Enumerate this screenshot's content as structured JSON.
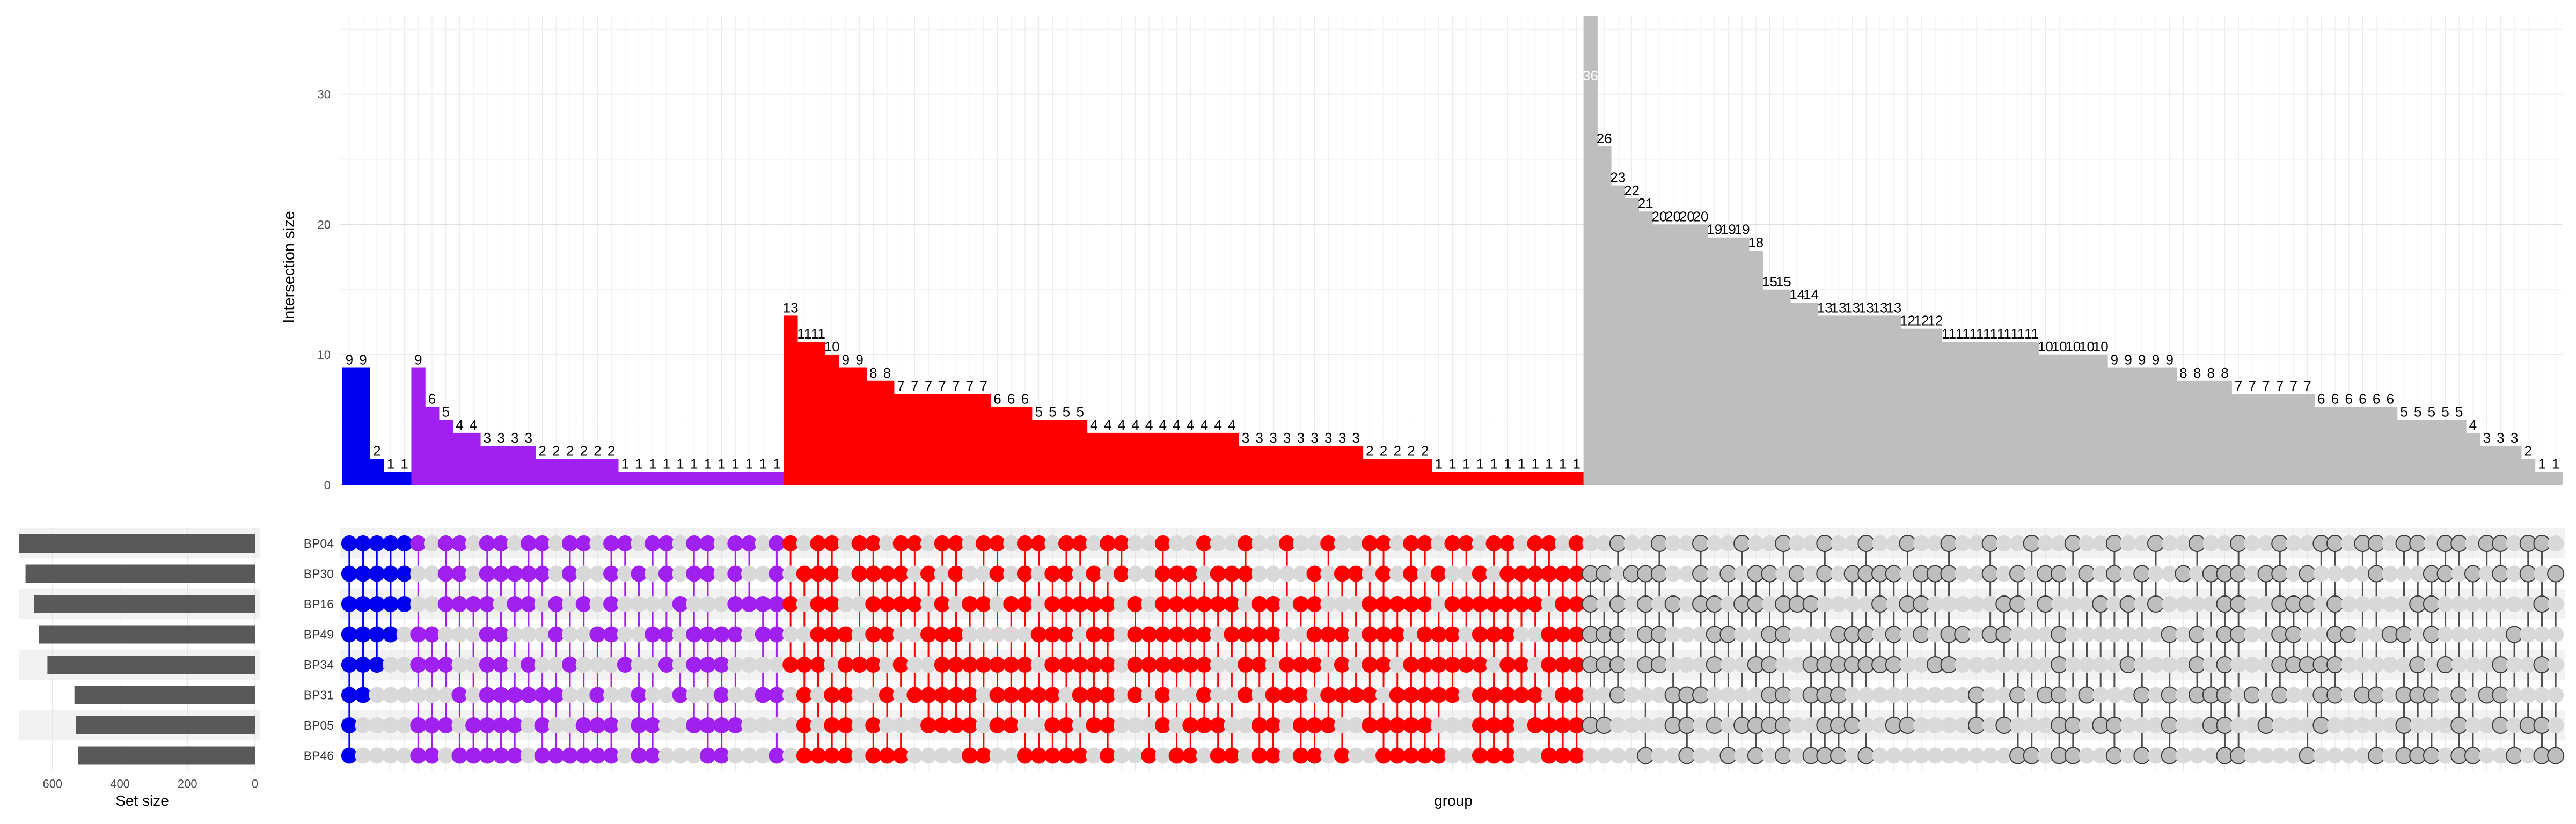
{
  "chart_data": {
    "type": "bar",
    "subtype": "upset",
    "ylabel": "Intersection size",
    "xlabel": "group",
    "set_size_label": "Set size",
    "yticks": [
      0,
      10,
      20,
      30
    ],
    "ylim": [
      0,
      36
    ],
    "set_size_ticks": [
      600,
      400,
      200,
      0
    ],
    "set_size_lim": [
      0,
      700
    ],
    "grid": true,
    "colors": {
      "blue": "#0000ee",
      "purple": "#a020f0",
      "red": "#ff0000",
      "gray": "#bebebe",
      "set_bar": "#595959"
    },
    "sets": [
      {
        "name": "BP04",
        "size": 700
      },
      {
        "name": "BP30",
        "size": 680
      },
      {
        "name": "BP16",
        "size": 655
      },
      {
        "name": "BP49",
        "size": 640
      },
      {
        "name": "BP34",
        "size": 615
      },
      {
        "name": "BP31",
        "size": 535
      },
      {
        "name": "BP05",
        "size": 530
      },
      {
        "name": "BP46",
        "size": 525
      }
    ],
    "groups": [
      {
        "color": "blue",
        "values": [
          9,
          9,
          2,
          1,
          1
        ]
      },
      {
        "color": "purple",
        "values": [
          9,
          6,
          5,
          4,
          4,
          3,
          3,
          3,
          3,
          2,
          2,
          2,
          2,
          2,
          2,
          1,
          1,
          1,
          1,
          1,
          1,
          1,
          1,
          1,
          1,
          1,
          1
        ]
      },
      {
        "color": "red",
        "values": [
          13,
          11,
          11,
          10,
          9,
          9,
          8,
          8,
          7,
          7,
          7,
          7,
          7,
          7,
          7,
          6,
          6,
          6,
          5,
          5,
          5,
          5,
          4,
          4,
          4,
          4,
          4,
          4,
          4,
          4,
          4,
          4,
          4,
          3,
          3,
          3,
          3,
          3,
          3,
          3,
          3,
          3,
          2,
          2,
          2,
          2,
          2,
          1,
          1,
          1,
          1,
          1,
          1,
          1,
          1,
          1,
          1,
          1
        ]
      },
      {
        "color": "gray",
        "values": [
          36,
          26,
          23,
          22,
          21,
          20,
          20,
          20,
          20,
          19,
          19,
          19,
          18,
          15,
          15,
          14,
          14,
          13,
          13,
          13,
          13,
          13,
          13,
          12,
          12,
          12,
          11,
          11,
          11,
          11,
          11,
          11,
          11,
          10,
          10,
          10,
          10,
          10,
          9,
          9,
          9,
          9,
          9,
          8,
          8,
          8,
          8,
          7,
          7,
          7,
          7,
          7,
          7,
          6,
          6,
          6,
          6,
          6,
          6,
          5,
          5,
          5,
          5,
          5,
          4,
          3,
          3,
          3,
          2,
          1,
          1
        ]
      }
    ]
  }
}
